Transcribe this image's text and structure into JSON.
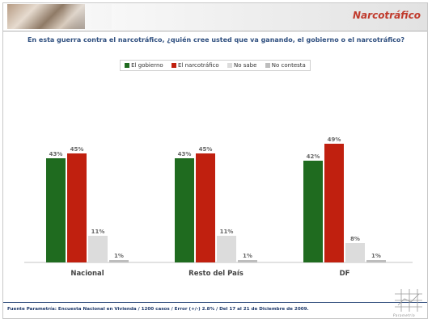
{
  "header": {
    "title": "Narcotráfico"
  },
  "question": "En esta guerra contra el narcotráfico, ¿quién cree usted que va ganando, el gobierno o el narcotráfico?",
  "legend": [
    {
      "label": "El gobierno",
      "color": "#1f6b1f"
    },
    {
      "label": "El narcotráfico",
      "color": "#c0200f"
    },
    {
      "label": "No sabe",
      "color": "#dcdcdc"
    },
    {
      "label": "No contesta",
      "color": "#bdbdbd"
    }
  ],
  "chart_data": {
    "type": "bar",
    "categories": [
      "Nacional",
      "Resto del País",
      "DF"
    ],
    "series": [
      {
        "name": "El gobierno",
        "values": [
          43,
          43,
          42
        ],
        "color": "#1f6b1f"
      },
      {
        "name": "El narcotráfico",
        "values": [
          45,
          45,
          49
        ],
        "color": "#c0200f"
      },
      {
        "name": "No sabe",
        "values": [
          11,
          11,
          8
        ],
        "color": "#dcdcdc"
      },
      {
        "name": "No contesta",
        "values": [
          1,
          1,
          1
        ],
        "color": "#bdbdbd"
      }
    ],
    "value_suffix": "%",
    "ylim": [
      0,
      55
    ],
    "grid": false,
    "legend_position": "top"
  },
  "footer": {
    "source": "Fuente Parametría: Encuesta Nacional en Vivienda / 1200 casos / Error (+/-) 2.8% / Del 17 al 21 de Diciembre de 2009."
  },
  "logo": {
    "text": "Parametría",
    "icon": "parametria-logo-icon"
  }
}
